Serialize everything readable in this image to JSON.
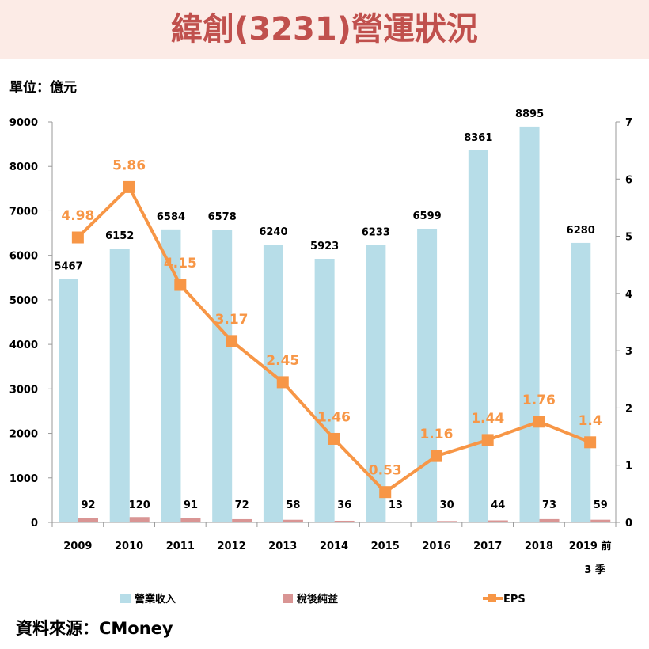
{
  "header": {
    "title": "緯創(3231)營運狀況"
  },
  "unit_label": "單位：億元",
  "source_label": "資料來源：CMoney",
  "colors": {
    "revenue": "#b7dde8",
    "net_income": "#d99594",
    "eps": "#f79646",
    "title": "#c0504d",
    "header_bg": "#fcebe6"
  },
  "chart_data": {
    "type": "bar",
    "combo_line_series": "EPS",
    "categories": [
      "2009",
      "2010",
      "2011",
      "2012",
      "2013",
      "2014",
      "2015",
      "2016",
      "2017",
      "2018",
      "2019 前 3 季"
    ],
    "series": [
      {
        "name": "營業收入",
        "type": "bar",
        "axis": "left",
        "values": [
          5467,
          6152,
          6584,
          6578,
          6240,
          5923,
          6233,
          6599,
          8361,
          8895,
          6280
        ]
      },
      {
        "name": "稅後純益",
        "type": "bar",
        "axis": "left",
        "values": [
          92,
          120,
          91,
          72,
          58,
          36,
          13,
          30,
          44,
          73,
          59
        ]
      },
      {
        "name": "EPS",
        "type": "line",
        "axis": "right",
        "values": [
          4.98,
          5.86,
          4.15,
          3.17,
          2.45,
          1.46,
          0.53,
          1.16,
          1.44,
          1.76,
          1.4
        ]
      }
    ],
    "y_left": {
      "min": 0,
      "max": 9000,
      "ticks": [
        "0",
        "1000",
        "2000",
        "3000",
        "4000",
        "5000",
        "6000",
        "7000",
        "8000",
        "9000"
      ]
    },
    "y_right": {
      "min": 0,
      "max": 7,
      "ticks": [
        "0",
        "1",
        "2",
        "3",
        "4",
        "5",
        "6",
        "7"
      ]
    },
    "legend_position": "bottom",
    "grid": false
  }
}
